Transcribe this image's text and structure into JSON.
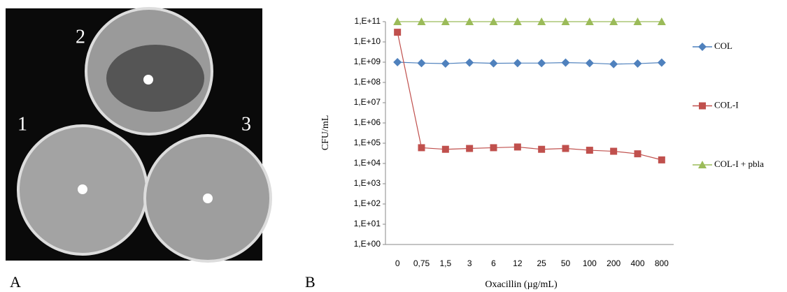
{
  "panel_a": {
    "panel_label": "A",
    "dish_labels": [
      "1",
      "2",
      "3"
    ]
  },
  "chart_data": {
    "type": "line",
    "panel_label": "B",
    "x_label": "Oxacillin (µg/mL)",
    "y_label": "CFU/mL",
    "categories": [
      "0",
      "0,75",
      "1,5",
      "3",
      "6",
      "12",
      "25",
      "50",
      "100",
      "200",
      "400",
      "800"
    ],
    "yscale": "log",
    "ylim": [
      1,
      100000000000
    ],
    "yticks": [
      {
        "value": 1,
        "label": "1,E+00"
      },
      {
        "value": 10,
        "label": "1,E+01"
      },
      {
        "value": 100,
        "label": "1,E+02"
      },
      {
        "value": 1000,
        "label": "1,E+03"
      },
      {
        "value": 10000,
        "label": "1,E+04"
      },
      {
        "value": 100000,
        "label": "1,E+05"
      },
      {
        "value": 1000000,
        "label": "1,E+06"
      },
      {
        "value": 10000000,
        "label": "1,E+07"
      },
      {
        "value": 100000000,
        "label": "1,E+08"
      },
      {
        "value": 1000000000,
        "label": "1,E+09"
      },
      {
        "value": 10000000000,
        "label": "1,E+10"
      },
      {
        "value": 100000000000,
        "label": "1,E+11"
      }
    ],
    "grid": false,
    "legend": "right",
    "series": [
      {
        "name": "COL",
        "color": "#4f81bd",
        "marker": "diamond",
        "values": [
          1000000000,
          900000000,
          850000000,
          950000000,
          880000000,
          900000000,
          900000000,
          950000000,
          900000000,
          800000000,
          850000000,
          950000000
        ]
      },
      {
        "name": "COL-I",
        "color": "#c0504d",
        "marker": "square",
        "values": [
          30000000000,
          60000,
          50000,
          55000,
          60000,
          65000,
          50000,
          55000,
          45000,
          40000,
          30000,
          15000
        ]
      },
      {
        "name": "COL-I + pbla",
        "color": "#9bbb59",
        "marker": "triangle",
        "values": [
          100000000000,
          100000000000,
          100000000000,
          100000000000,
          100000000000,
          100000000000,
          100000000000,
          100000000000,
          100000000000,
          100000000000,
          100000000000,
          100000000000
        ]
      }
    ]
  }
}
